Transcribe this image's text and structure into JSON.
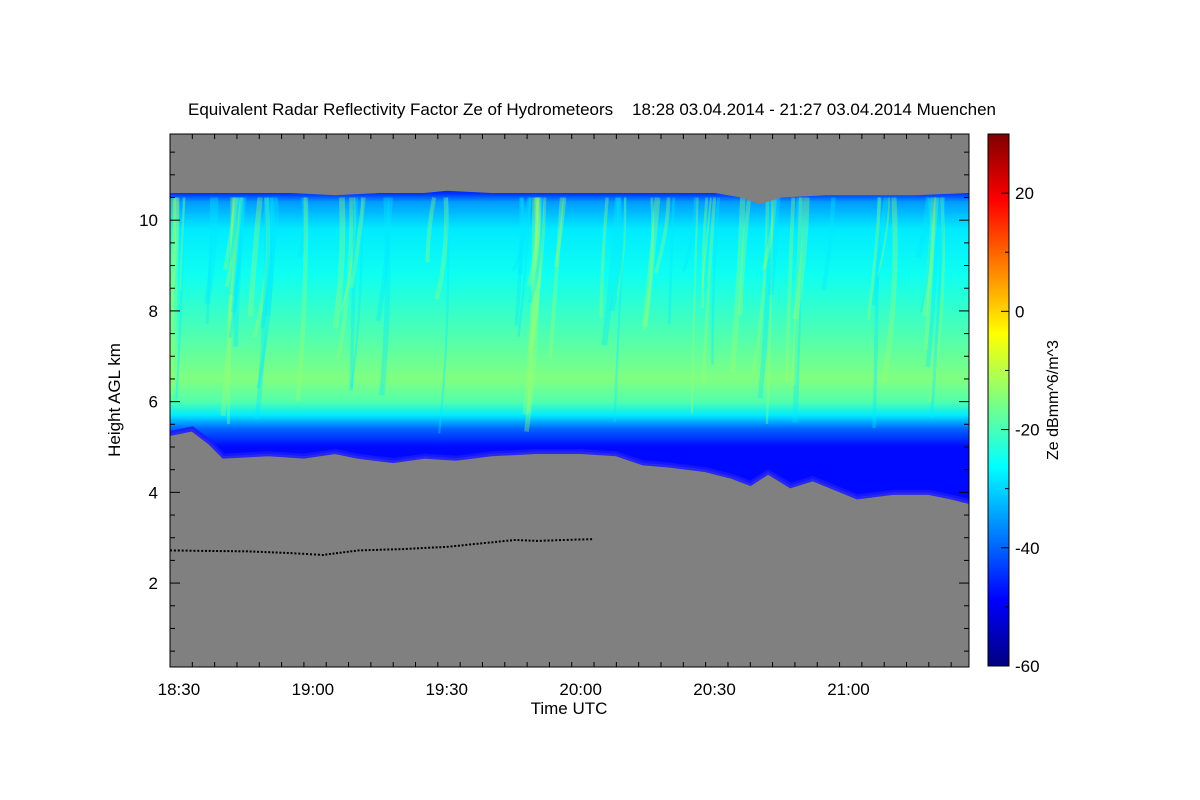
{
  "chart_data": {
    "type": "heatmap",
    "title": "Equivalent Radar Reflectivity Factor Ze of Hydrometeors    18:28 03.04.2014 - 21:27 03.04.2014 Muenchen",
    "xlabel": "Time UTC",
    "ylabel": "Height AGL km",
    "colorbar_label": "Ze dBmm^6/m^3",
    "x_range_minutes_utc": [
      1108,
      1287
    ],
    "y_range_km": [
      0.15,
      11.9
    ],
    "x_ticks": [
      {
        "minute": 1110,
        "label": "18:30"
      },
      {
        "minute": 1140,
        "label": "19:00"
      },
      {
        "minute": 1170,
        "label": "19:30"
      },
      {
        "minute": 1200,
        "label": "20:00"
      },
      {
        "minute": 1230,
        "label": "20:30"
      },
      {
        "minute": 1260,
        "label": "21:00"
      }
    ],
    "y_ticks": [
      {
        "value": 2,
        "label": "2"
      },
      {
        "value": 4,
        "label": "4"
      },
      {
        "value": 6,
        "label": "6"
      },
      {
        "value": 8,
        "label": "8"
      },
      {
        "value": 10,
        "label": "10"
      }
    ],
    "colorbar_range": [
      -60,
      30
    ],
    "colorbar_ticks": [
      {
        "value": -60,
        "label": "-60"
      },
      {
        "value": -40,
        "label": "-40"
      },
      {
        "value": -20,
        "label": "-20"
      },
      {
        "value": 0,
        "label": "0"
      },
      {
        "value": 20,
        "label": "20"
      }
    ],
    "colormap": [
      "#000080",
      "#0000ff",
      "#0080ff",
      "#00ffff",
      "#80ff80",
      "#ffff00",
      "#ff8000",
      "#ff0000",
      "#800000"
    ],
    "no_signal_color": "#808080",
    "cloud_top_km": [
      [
        1108,
        10.6
      ],
      [
        1115,
        10.6
      ],
      [
        1125,
        10.6
      ],
      [
        1135,
        10.6
      ],
      [
        1145,
        10.55
      ],
      [
        1155,
        10.6
      ],
      [
        1165,
        10.6
      ],
      [
        1170,
        10.65
      ],
      [
        1180,
        10.6
      ],
      [
        1190,
        10.6
      ],
      [
        1200,
        10.6
      ],
      [
        1210,
        10.6
      ],
      [
        1220,
        10.6
      ],
      [
        1230,
        10.6
      ],
      [
        1236,
        10.5
      ],
      [
        1240,
        10.35
      ],
      [
        1245,
        10.5
      ],
      [
        1255,
        10.55
      ],
      [
        1265,
        10.55
      ],
      [
        1275,
        10.55
      ],
      [
        1287,
        10.6
      ]
    ],
    "cloud_base_km": [
      [
        1108,
        5.3
      ],
      [
        1113,
        5.4
      ],
      [
        1117,
        5.1
      ],
      [
        1120,
        4.8
      ],
      [
        1130,
        4.85
      ],
      [
        1138,
        4.8
      ],
      [
        1145,
        4.9
      ],
      [
        1150,
        4.8
      ],
      [
        1158,
        4.7
      ],
      [
        1165,
        4.8
      ],
      [
        1172,
        4.75
      ],
      [
        1180,
        4.85
      ],
      [
        1190,
        4.9
      ],
      [
        1200,
        4.9
      ],
      [
        1208,
        4.85
      ],
      [
        1214,
        4.65
      ],
      [
        1220,
        4.6
      ],
      [
        1228,
        4.5
      ],
      [
        1234,
        4.35
      ],
      [
        1238,
        4.2
      ],
      [
        1242,
        4.45
      ],
      [
        1247,
        4.15
      ],
      [
        1252,
        4.3
      ],
      [
        1257,
        4.1
      ],
      [
        1262,
        3.9
      ],
      [
        1270,
        4.0
      ],
      [
        1278,
        4.0
      ],
      [
        1283,
        3.9
      ],
      [
        1287,
        3.8
      ]
    ],
    "layer_ze_dbz": [
      {
        "height_km": 10.6,
        "ze": -45
      },
      {
        "height_km": 10.4,
        "ze": -35
      },
      {
        "height_km": 9.8,
        "ze": -28
      },
      {
        "height_km": 8.8,
        "ze": -25
      },
      {
        "height_km": 7.4,
        "ze": -19
      },
      {
        "height_km": 6.5,
        "ze": -15
      },
      {
        "height_km": 6.0,
        "ze": -19
      },
      {
        "height_km": 5.7,
        "ze": -28
      },
      {
        "height_km": 5.4,
        "ze": -40
      },
      {
        "height_km": 5.0,
        "ze": -48
      }
    ],
    "aircraft_trail_km": [
      [
        1108,
        2.72
      ],
      [
        1115,
        2.71
      ],
      [
        1125,
        2.7
      ],
      [
        1135,
        2.66
      ],
      [
        1142,
        2.62
      ],
      [
        1150,
        2.72
      ],
      [
        1160,
        2.75
      ],
      [
        1170,
        2.8
      ],
      [
        1180,
        2.9
      ],
      [
        1185,
        2.95
      ],
      [
        1190,
        2.93
      ],
      [
        1196,
        2.95
      ],
      [
        1203,
        2.97
      ]
    ]
  }
}
